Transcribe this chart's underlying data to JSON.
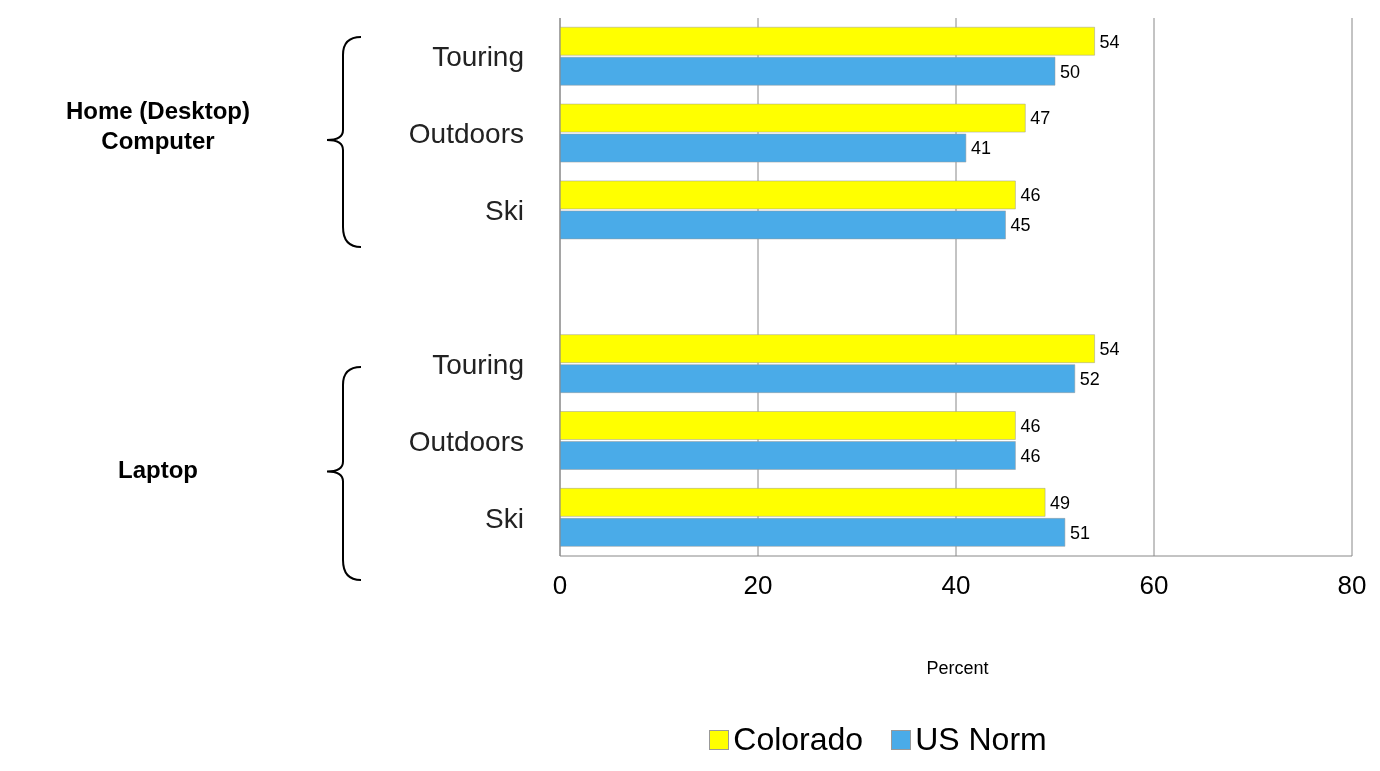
{
  "chart_data": {
    "type": "bar",
    "orientation": "horizontal",
    "categories": [
      "Touring",
      "Outdoors",
      "Ski",
      null,
      "Touring",
      "Outdoors",
      "Ski"
    ],
    "series": [
      {
        "name": "Colorado",
        "color": "#ffff00",
        "values": [
          54,
          47,
          46,
          null,
          54,
          46,
          49
        ]
      },
      {
        "name": "US Norm",
        "color": "#4aabe8",
        "values": [
          50,
          41,
          45,
          null,
          52,
          46,
          51
        ]
      }
    ],
    "xlim": [
      0,
      80
    ],
    "xticks": [
      0,
      20,
      40,
      60,
      80
    ],
    "xlabel": "Percent",
    "grid": "x",
    "legend": "bottom",
    "data_labels": true,
    "annotations": [
      "Home (Desktop) Computer",
      "Laptop"
    ]
  }
}
